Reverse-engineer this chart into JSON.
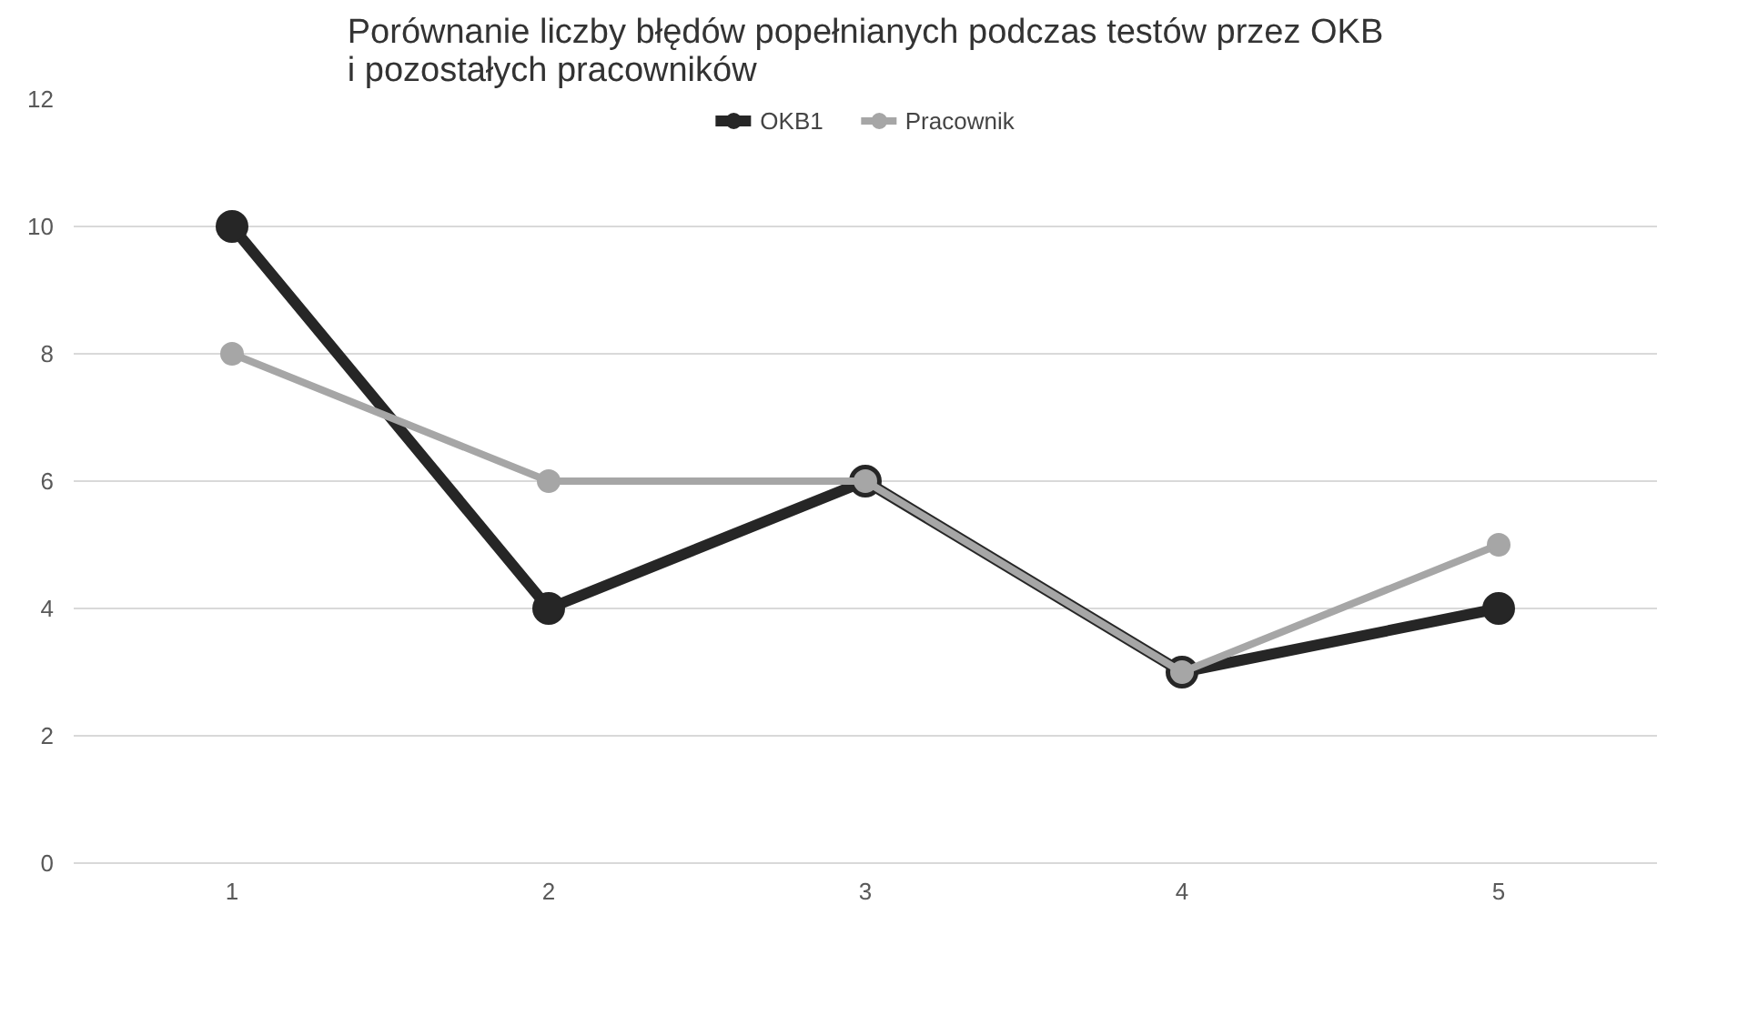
{
  "chart_data": {
    "type": "line",
    "title": "Porównanie liczby błędów popełnianych podczas testów przez OKB\ni pozostałych pracowników",
    "categories": [
      "1",
      "2",
      "3",
      "4",
      "5"
    ],
    "series": [
      {
        "name": "OKB1",
        "color": "#262626",
        "values": [
          10,
          4,
          6,
          3,
          4
        ]
      },
      {
        "name": "Pracownik",
        "color": "#a6a6a6",
        "values": [
          8,
          6,
          6,
          3,
          5
        ]
      }
    ],
    "ylim": [
      0,
      12
    ],
    "yticks": [
      0,
      2,
      4,
      6,
      8,
      10,
      12
    ],
    "grid": "y",
    "legend": "top",
    "marker": "circle",
    "line_style": "solid"
  }
}
